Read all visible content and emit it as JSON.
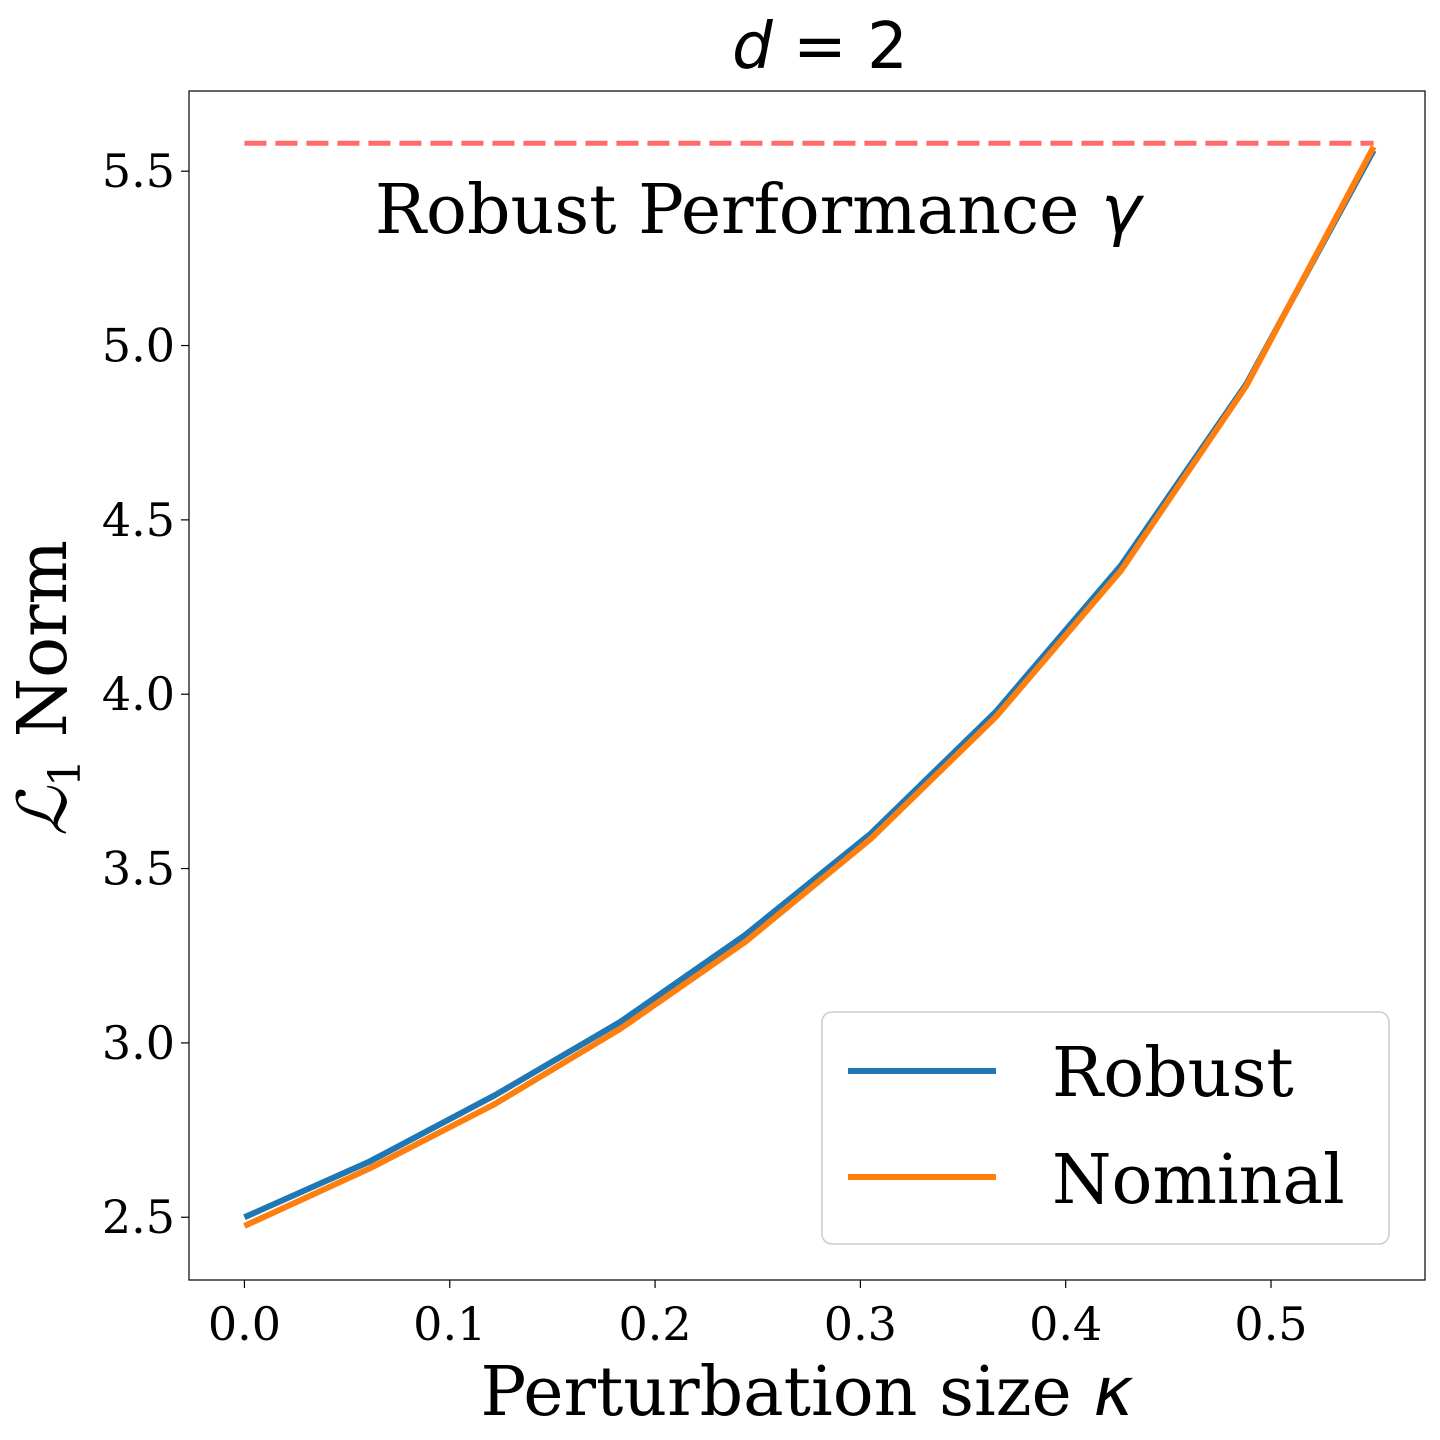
{
  "chart_data": {
    "type": "line",
    "title": "d = 2",
    "title_parts": {
      "var": "d",
      "rest": " = 2"
    },
    "xlabel": "Perturbation size κ",
    "xlabel_parts": {
      "text": "Perturbation size ",
      "sym": "κ"
    },
    "ylabel": "ℒ1 Norm",
    "ylabel_parts": {
      "sym": "ℒ",
      "sub": "1",
      "text": " Norm"
    },
    "xlim": [
      -0.027,
      0.575
    ],
    "ylim": [
      2.32,
      5.73
    ],
    "xticks": [
      0.0,
      0.1,
      0.2,
      0.3,
      0.4,
      0.5
    ],
    "xtick_labels": [
      "0.0",
      "0.1",
      "0.2",
      "0.3",
      "0.4",
      "0.5"
    ],
    "yticks": [
      2.5,
      3.0,
      3.5,
      4.0,
      4.5,
      5.0,
      5.5
    ],
    "ytick_labels": [
      "2.5",
      "3.0",
      "3.5",
      "4.0",
      "4.5",
      "5.0",
      "5.5"
    ],
    "grid": false,
    "legend_position": "lower-right",
    "x": [
      0.0,
      0.061,
      0.122,
      0.183,
      0.244,
      0.305,
      0.366,
      0.427,
      0.488,
      0.55
    ],
    "series": [
      {
        "name": "Robust",
        "color": "#1f77b4",
        "values": [
          2.5,
          2.66,
          2.85,
          3.06,
          3.31,
          3.6,
          3.95,
          4.37,
          4.89,
          5.56
        ]
      },
      {
        "name": "Nominal",
        "color": "#ff7f0e",
        "values": [
          2.475,
          2.64,
          2.825,
          3.04,
          3.29,
          3.585,
          3.935,
          4.355,
          4.885,
          5.57
        ]
      }
    ],
    "reference_line": {
      "value": 5.58,
      "x_range": [
        0.0,
        0.55
      ],
      "color": "#ff6a6a",
      "style": "dashed"
    },
    "annotation": {
      "text": "Robust Performance γ",
      "text_parts": {
        "text": "Robust Performance ",
        "sym": "γ"
      }
    }
  }
}
